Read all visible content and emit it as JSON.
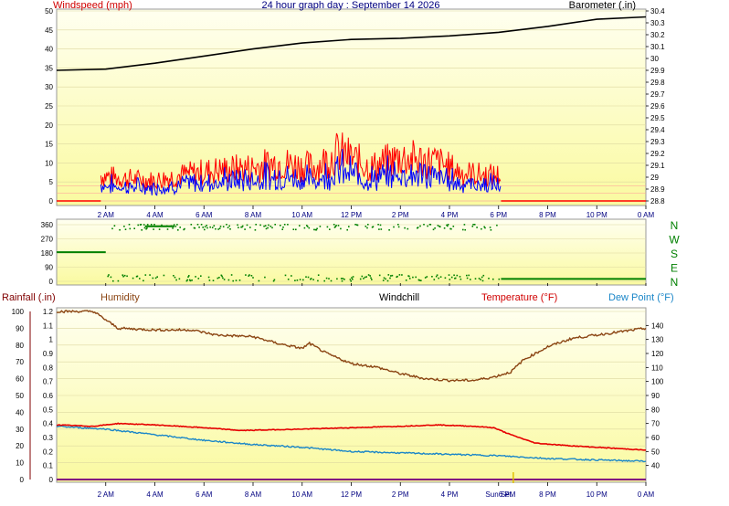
{
  "title": "24 hour graph day : September 14 2026",
  "colors": {
    "red": "#ff0000",
    "blue": "#0000ff",
    "black": "#000000",
    "green": "#008000",
    "brown": "#8b4513",
    "dewpoint": "#1a86c8",
    "temperature": "#e60000",
    "rainfall": "#800080",
    "plot_top": "#fffff0",
    "plot_bottom": "#fafaa0"
  },
  "x_ticks": [
    "2 AM",
    "4 AM",
    "6 AM",
    "8 AM",
    "10 AM",
    "12 PM",
    "2 PM",
    "4 PM",
    "6 PM",
    "8 PM",
    "10 PM",
    "0 AM"
  ],
  "chart_data": [
    {
      "type": "line",
      "name": "wind-barometer",
      "series_labels": {
        "wind": "Windspeed (mph)",
        "baro": "Barometer (.in)"
      },
      "x_range_hours": [
        0,
        24
      ],
      "left_axis": {
        "ticks": [
          "0",
          "5",
          "10",
          "15",
          "20",
          "25",
          "30",
          "35",
          "40",
          "45",
          "50"
        ],
        "ylim": [
          0,
          50
        ]
      },
      "right_axis": {
        "ticks": [
          "28.8",
          "28.9",
          "29",
          "29.1",
          "29.2",
          "29.3",
          "29.4",
          "29.5",
          "29.6",
          "29.7",
          "29.8",
          "29.9",
          "30",
          "30.1",
          "30.2",
          "30.3",
          "30.4"
        ],
        "ylim": [
          28.8,
          30.4
        ]
      },
      "gust_peaks": {
        "x": [
          1.8,
          2.5,
          4.0,
          5.0,
          6.5,
          8.0,
          9.0,
          10.5,
          11.5,
          12.8,
          14.0,
          15.5,
          16.5,
          17.5
        ],
        "y": [
          10,
          9,
          8,
          10,
          12,
          13,
          15,
          13,
          19,
          13,
          17,
          15,
          11,
          10
        ]
      },
      "barometer": {
        "x": [
          0,
          2,
          4,
          6,
          8,
          10,
          12,
          14,
          16,
          18,
          20,
          22,
          24
        ],
        "y": [
          29.9,
          29.91,
          29.96,
          30.02,
          30.08,
          30.13,
          30.16,
          30.17,
          30.19,
          30.22,
          30.27,
          30.33,
          30.35
        ]
      }
    },
    {
      "type": "scatter",
      "name": "wind-direction",
      "y_ticks": [
        "0",
        "90",
        "180",
        "270",
        "360"
      ],
      "ylim": [
        0,
        360
      ],
      "compass_labels": [
        "N",
        "W",
        "S",
        "E",
        "N"
      ],
      "segments": [
        {
          "x": [
            0,
            2.0
          ],
          "y": 185
        },
        {
          "x": [
            3.6,
            4.8
          ],
          "y": 350
        },
        {
          "x": [
            18.1,
            24
          ],
          "y": 15
        }
      ]
    },
    {
      "type": "line",
      "name": "rain-humidity-temperature",
      "series_labels": {
        "rain": "Rainfall (.in)",
        "humidity": "Humidity",
        "windchill": "Windchill",
        "temperature": "Temperature (°F)",
        "dewpoint": "Dew Point (°F)"
      },
      "left_axis_pct": {
        "ticks": [
          "0",
          "10",
          "20",
          "30",
          "40",
          "50",
          "60",
          "70",
          "80",
          "90",
          "100"
        ],
        "ylim": [
          0,
          100
        ]
      },
      "left_axis_rain": {
        "ticks": [
          "0",
          "0.1",
          "0.2",
          "0.3",
          "0.4",
          "0.5",
          "0.6",
          "0.7",
          "0.8",
          "0.9",
          "1",
          "1.1",
          "1.2"
        ],
        "ylim": [
          0,
          1.2
        ]
      },
      "right_axis_temp": {
        "ticks": [
          "40",
          "50",
          "60",
          "70",
          "80",
          "90",
          "100",
          "110",
          "120",
          "130",
          "140"
        ],
        "ylim": [
          30,
          150
        ]
      },
      "sunset_label": "Sun Set",
      "sunset_hour": 18.6,
      "humidity": {
        "x": [
          0,
          1.5,
          2.0,
          2.5,
          4,
          5.5,
          6.5,
          8,
          9,
          10,
          10.3,
          11,
          12,
          13,
          14,
          15,
          16,
          17,
          17.8,
          18.5,
          19,
          20,
          21,
          22,
          23,
          24
        ],
        "y": [
          100,
          100,
          95,
          90,
          89,
          89,
          86,
          85,
          81,
          78,
          81,
          75,
          69,
          67,
          63,
          60,
          59,
          59,
          61,
          64,
          71,
          79,
          84,
          86,
          88,
          90
        ]
      },
      "temperature": {
        "x": [
          0,
          1.5,
          2.5,
          4,
          6,
          7.5,
          10,
          12,
          14,
          15.5,
          17,
          17.8,
          18.5,
          19.5,
          21,
          23,
          24
        ],
        "y": [
          69,
          68,
          70,
          69,
          67,
          65,
          66,
          67,
          68,
          69,
          68,
          67,
          62,
          56,
          54,
          52,
          51
        ]
      },
      "dewpoint": {
        "x": [
          0,
          2,
          4,
          6,
          8,
          10,
          12,
          14,
          16,
          18,
          20,
          22,
          24
        ],
        "y": [
          68,
          66,
          62,
          58,
          55,
          53,
          50,
          49,
          48,
          47,
          45,
          44,
          43
        ]
      }
    }
  ]
}
